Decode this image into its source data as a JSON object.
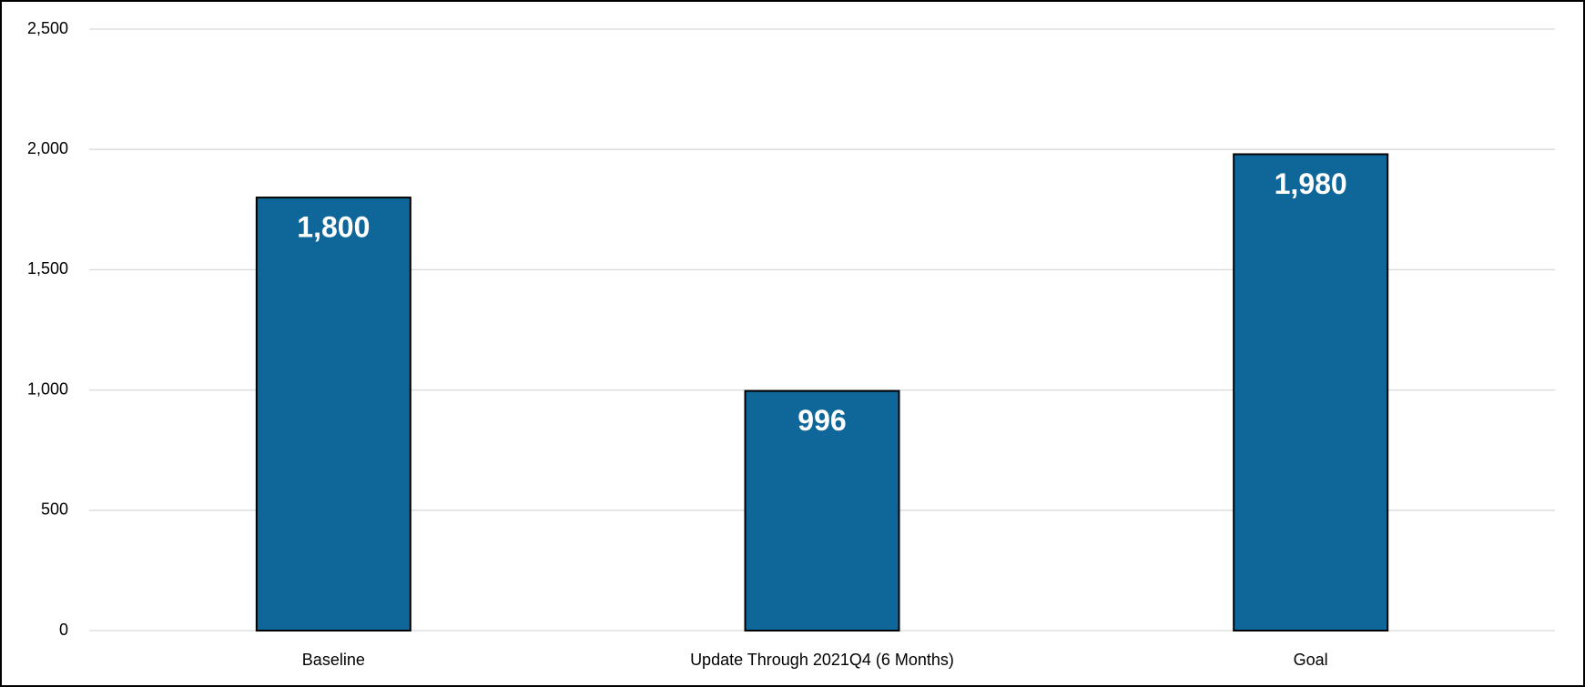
{
  "chart_data": {
    "type": "bar",
    "categories": [
      "Baseline",
      "Update Through 2021Q4 (6 Months)",
      "Goal"
    ],
    "values": [
      1800,
      996,
      1980
    ],
    "value_labels": [
      "1,800",
      "996",
      "1,980"
    ],
    "color": "#0e6699",
    "ylim": [
      0,
      2500
    ],
    "yticks": [
      0,
      {
        "value": 500,
        "label": "500"
      },
      {
        "value": 1000,
        "label": "1,000"
      },
      {
        "value": 1500,
        "label": "1,500"
      },
      {
        "value": 2000,
        "label": "2,000"
      },
      {
        "value": 2500,
        "label": "2,500"
      }
    ],
    "grid": true
  }
}
